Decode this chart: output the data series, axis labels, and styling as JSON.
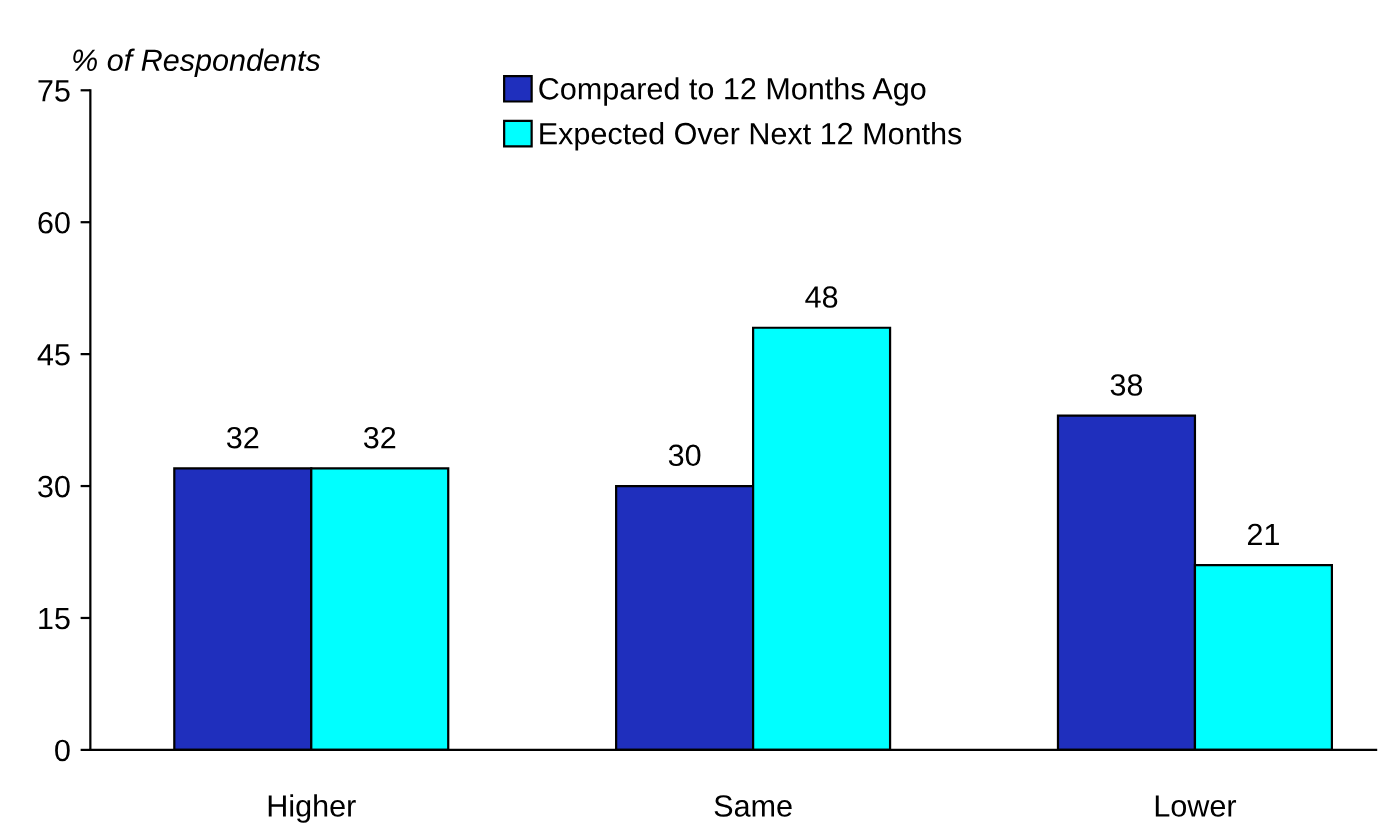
{
  "chart_data": {
    "type": "bar",
    "ylabel": "% of Respondents",
    "categories": [
      "Higher",
      "Same",
      "Lower"
    ],
    "series": [
      {
        "name": "Compared to 12 Months Ago",
        "color": "#1f2fbd",
        "values": [
          32,
          30,
          38
        ]
      },
      {
        "name": "Expected Over Next 12 Months",
        "color": "#00ffff",
        "values": [
          32,
          48,
          21
        ]
      }
    ],
    "ylim": [
      0,
      75
    ],
    "yticks": [
      0,
      15,
      30,
      45,
      60,
      75
    ],
    "grid": false,
    "legend": "top",
    "data_labels": true
  }
}
